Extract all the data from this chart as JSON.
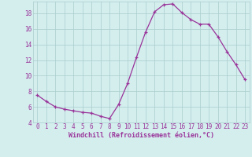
{
  "x": [
    0,
    1,
    2,
    3,
    4,
    5,
    6,
    7,
    8,
    9,
    10,
    11,
    12,
    13,
    14,
    15,
    16,
    17,
    18,
    19,
    20,
    21,
    22,
    23
  ],
  "y": [
    7.5,
    6.7,
    6.0,
    5.7,
    5.5,
    5.3,
    5.2,
    4.8,
    4.5,
    6.3,
    9.0,
    12.4,
    15.6,
    18.2,
    19.1,
    19.2,
    18.1,
    17.2,
    16.6,
    16.6,
    15.0,
    13.1,
    11.4,
    9.5
  ],
  "line_color": "#993399",
  "marker": "+",
  "bg_color": "#d4eeee",
  "grid_color": "#aacccc",
  "xlabel": "Windchill (Refroidissement éolien,°C)",
  "xlabel_color": "#993399",
  "tick_color": "#993399",
  "ylim": [
    4,
    19.5
  ],
  "xlim": [
    -0.5,
    23.5
  ],
  "yticks": [
    4,
    6,
    8,
    10,
    12,
    14,
    16,
    18
  ],
  "xticks": [
    0,
    1,
    2,
    3,
    4,
    5,
    6,
    7,
    8,
    9,
    10,
    11,
    12,
    13,
    14,
    15,
    16,
    17,
    18,
    19,
    20,
    21,
    22,
    23
  ],
  "xtick_labels": [
    "0",
    "1",
    "2",
    "3",
    "4",
    "5",
    "6",
    "7",
    "8",
    "9",
    "10",
    "11",
    "12",
    "13",
    "14",
    "15",
    "16",
    "17",
    "18",
    "19",
    "20",
    "21",
    "22",
    "23"
  ],
  "ytick_labels": [
    "4",
    "6",
    "8",
    "10",
    "12",
    "14",
    "16",
    "18"
  ],
  "tick_fontsize": 5.5,
  "xlabel_fontsize": 6.0,
  "marker_size": 3,
  "line_width": 0.9
}
